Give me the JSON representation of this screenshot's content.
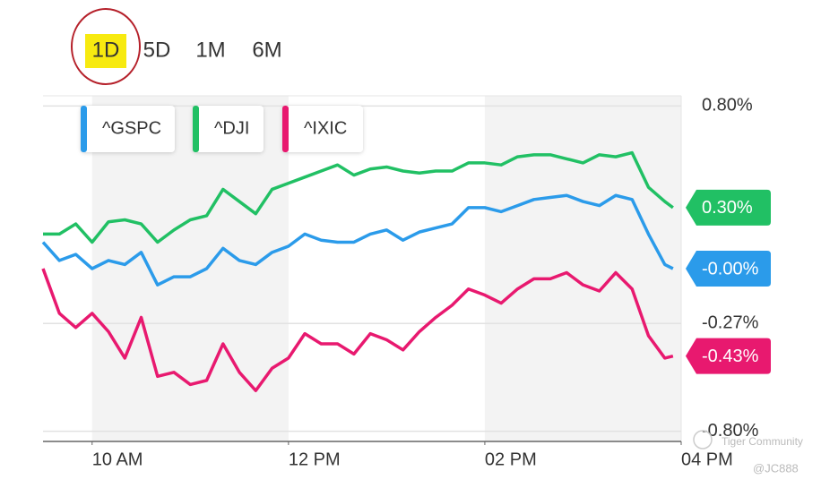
{
  "chart_data": {
    "type": "line",
    "ranges": [
      "1D",
      "5D",
      "1M",
      "6M"
    ],
    "selected_range": 0,
    "x": [
      570,
      580,
      590,
      600,
      610,
      620,
      630,
      640,
      650,
      660,
      670,
      680,
      690,
      700,
      710,
      720,
      730,
      740,
      750,
      760,
      770,
      780,
      790,
      800,
      810,
      820,
      830,
      840,
      850,
      860,
      870,
      880,
      890,
      900,
      910,
      920,
      930,
      940,
      950,
      955
    ],
    "xlim": [
      570,
      960
    ],
    "xticks": [
      {
        "value": 600,
        "label": "10 AM"
      },
      {
        "value": 720,
        "label": "12 PM"
      },
      {
        "value": 840,
        "label": "02 PM"
      },
      {
        "value": 960,
        "label": "04 PM"
      }
    ],
    "ylim": [
      -0.85,
      0.85
    ],
    "yticks": [
      {
        "value": 0.8,
        "label": "0.80%"
      },
      {
        "value": -0.27,
        "label": "-0.27%"
      },
      {
        "value": -0.8,
        "label": "-0.80%"
      }
    ],
    "grid": true,
    "series": [
      {
        "name": "^GSPC",
        "color": "#2b9bea",
        "values": [
          0.13,
          0.04,
          0.07,
          0,
          0.04,
          0.02,
          0.08,
          -0.08,
          -0.04,
          -0.04,
          0,
          0.1,
          0.04,
          0.02,
          0.08,
          0.11,
          0.17,
          0.14,
          0.13,
          0.13,
          0.17,
          0.19,
          0.14,
          0.18,
          0.2,
          0.22,
          0.3,
          0.3,
          0.28,
          0.31,
          0.34,
          0.35,
          0.36,
          0.33,
          0.31,
          0.36,
          0.34,
          0.17,
          0.02,
          0
        ],
        "value_labels": [
          null,
          null,
          null,
          null,
          null,
          null,
          null,
          null,
          null,
          null,
          null,
          null,
          null,
          null,
          null,
          null,
          null,
          null,
          null,
          null,
          null,
          null,
          null,
          null,
          null,
          null,
          null,
          null,
          null,
          null,
          null,
          null,
          null,
          null,
          null,
          null,
          null,
          null,
          null,
          "-0.00%"
        ]
      },
      {
        "name": "^DJI",
        "color": "#21c064",
        "values": [
          0.17,
          0.17,
          0.22,
          0.13,
          0.23,
          0.24,
          0.22,
          0.13,
          0.19,
          0.24,
          0.26,
          0.39,
          0.33,
          0.27,
          0.39,
          0.42,
          0.45,
          0.48,
          0.51,
          0.46,
          0.49,
          0.5,
          0.48,
          0.47,
          0.48,
          0.48,
          0.52,
          0.52,
          0.51,
          0.55,
          0.56,
          0.56,
          0.54,
          0.52,
          0.56,
          0.55,
          0.57,
          0.4,
          0.33,
          0.3
        ],
        "value_labels": [
          null,
          null,
          null,
          null,
          null,
          null,
          null,
          null,
          null,
          null,
          null,
          null,
          null,
          null,
          null,
          null,
          null,
          null,
          null,
          null,
          null,
          null,
          null,
          null,
          null,
          null,
          null,
          null,
          null,
          null,
          null,
          null,
          null,
          null,
          null,
          null,
          null,
          null,
          null,
          "0.30%"
        ]
      },
      {
        "name": "^IXIC",
        "color": "#e8196f",
        "values": [
          0,
          -0.22,
          -0.29,
          -0.22,
          -0.31,
          -0.44,
          -0.24,
          -0.53,
          -0.51,
          -0.57,
          -0.55,
          -0.37,
          -0.51,
          -0.6,
          -0.49,
          -0.44,
          -0.32,
          -0.37,
          -0.37,
          -0.42,
          -0.32,
          -0.35,
          -0.4,
          -0.31,
          -0.24,
          -0.18,
          -0.1,
          -0.13,
          -0.17,
          -0.1,
          -0.05,
          -0.05,
          -0.02,
          -0.08,
          -0.11,
          -0.02,
          -0.1,
          -0.33,
          -0.44,
          -0.43
        ],
        "value_labels": [
          null,
          null,
          null,
          null,
          null,
          null,
          null,
          null,
          null,
          null,
          null,
          null,
          null,
          null,
          null,
          null,
          null,
          null,
          null,
          null,
          null,
          null,
          null,
          null,
          null,
          null,
          null,
          null,
          null,
          null,
          null,
          null,
          null,
          null,
          null,
          null,
          null,
          null,
          null,
          "-0.43%"
        ]
      }
    ],
    "watermark": {
      "brand": "Tiger Community",
      "handle": "@JC888"
    }
  }
}
